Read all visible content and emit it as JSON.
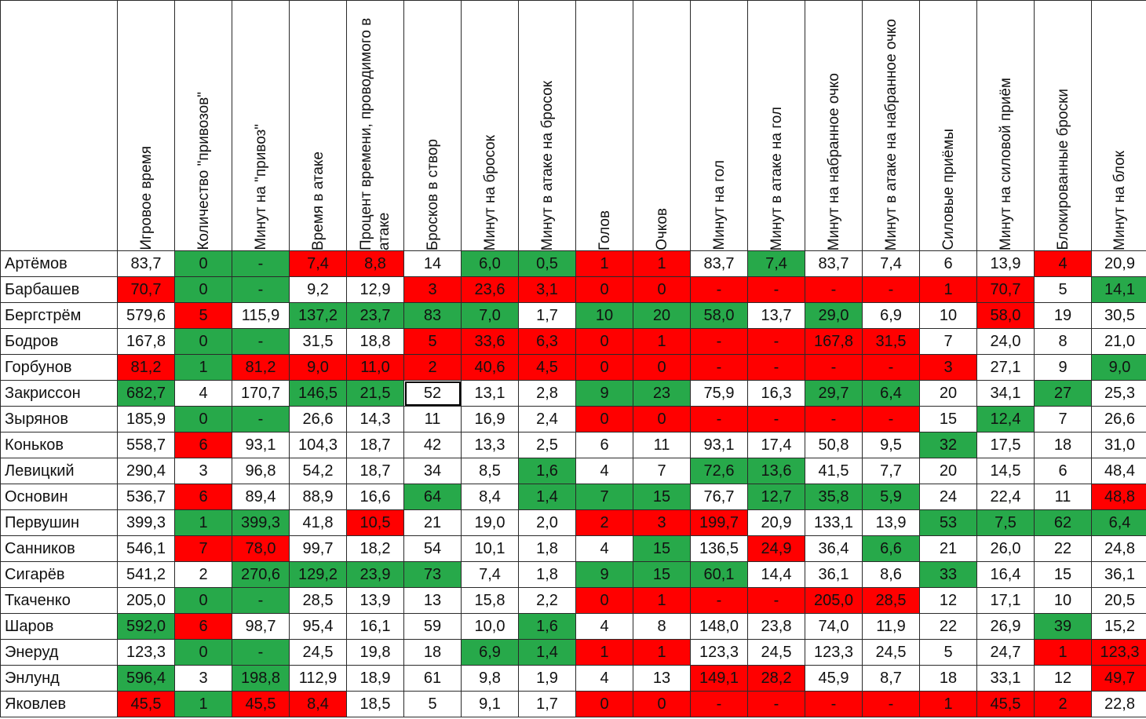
{
  "colors": {
    "green": "#27a94a",
    "red": "#ff0000"
  },
  "headers": [
    "Игровое время",
    "Количество \"привозов\"",
    "Минут на \"привоз\"",
    "Время в атаке",
    "Процент времени, проводимого в атаке",
    "Бросков в створ",
    "Минут на бросок",
    "Минут в атаке на бросок",
    "Голов",
    "Очков",
    "Минут на гол",
    "Минут в атаке на гол",
    "Минут на набранное очко",
    "Минут в атаке на набранное очко",
    "Силовые приёмы",
    "Минут на силовой приём",
    "Блокированные броски",
    "Минут на блок"
  ],
  "rows": [
    {
      "name": "Артёмов",
      "values": [
        "83,7",
        "0",
        "-",
        "7,4",
        "8,8",
        "14",
        "6,0",
        "0,5",
        "1",
        "1",
        "83,7",
        "7,4",
        "83,7",
        "7,4",
        "6",
        "13,9",
        "4",
        "20,9"
      ],
      "colors": [
        "",
        "g",
        "g",
        "r",
        "r",
        "",
        "g",
        "g",
        "r",
        "r",
        "",
        "g",
        "",
        "",
        "",
        "",
        "r",
        ""
      ]
    },
    {
      "name": "Барбашев",
      "values": [
        "70,7",
        "0",
        "-",
        "9,2",
        "12,9",
        "3",
        "23,6",
        "3,1",
        "0",
        "0",
        "-",
        "-",
        "-",
        "-",
        "1",
        "70,7",
        "5",
        "14,1"
      ],
      "colors": [
        "r",
        "g",
        "g",
        "",
        "",
        "r",
        "r",
        "r",
        "r",
        "r",
        "r",
        "r",
        "r",
        "r",
        "r",
        "r",
        "",
        "g"
      ]
    },
    {
      "name": "Бергстрём",
      "values": [
        "579,6",
        "5",
        "115,9",
        "137,2",
        "23,7",
        "83",
        "7,0",
        "1,7",
        "10",
        "20",
        "58,0",
        "13,7",
        "29,0",
        "6,9",
        "10",
        "58,0",
        "19",
        "30,5"
      ],
      "colors": [
        "",
        "r",
        "",
        "g",
        "g",
        "g",
        "g",
        "",
        "g",
        "g",
        "g",
        "",
        "g",
        "",
        "",
        "r",
        "",
        ""
      ]
    },
    {
      "name": "Бодров",
      "values": [
        "167,8",
        "0",
        "-",
        "31,5",
        "18,8",
        "5",
        "33,6",
        "6,3",
        "0",
        "1",
        "-",
        "-",
        "167,8",
        "31,5",
        "7",
        "24,0",
        "8",
        "21,0"
      ],
      "colors": [
        "",
        "g",
        "g",
        "",
        "",
        "r",
        "r",
        "r",
        "r",
        "r",
        "r",
        "r",
        "r",
        "r",
        "",
        "",
        "",
        ""
      ]
    },
    {
      "name": "Горбунов",
      "values": [
        "81,2",
        "1",
        "81,2",
        "9,0",
        "11,0",
        "2",
        "40,6",
        "4,5",
        "0",
        "0",
        "-",
        "-",
        "-",
        "-",
        "3",
        "27,1",
        "9",
        "9,0"
      ],
      "colors": [
        "r",
        "g",
        "r",
        "r",
        "r",
        "r",
        "r",
        "r",
        "r",
        "r",
        "r",
        "r",
        "r",
        "r",
        "r",
        "",
        "",
        "g"
      ]
    },
    {
      "name": "Закриссон",
      "values": [
        "682,7",
        "4",
        "170,7",
        "146,5",
        "21,5",
        "52",
        "13,1",
        "2,8",
        "9",
        "23",
        "75,9",
        "16,3",
        "29,7",
        "6,4",
        "20",
        "34,1",
        "27",
        "25,3"
      ],
      "colors": [
        "g",
        "",
        "",
        "g",
        "g",
        "sel",
        "",
        "",
        "g",
        "g",
        "",
        "",
        "g",
        "g",
        "",
        "",
        "g",
        ""
      ]
    },
    {
      "name": "Зырянов",
      "values": [
        "185,9",
        "0",
        "-",
        "26,6",
        "14,3",
        "11",
        "16,9",
        "2,4",
        "0",
        "0",
        "-",
        "-",
        "-",
        "-",
        "15",
        "12,4",
        "7",
        "26,6"
      ],
      "colors": [
        "",
        "g",
        "g",
        "",
        "",
        "",
        "",
        "",
        "r",
        "r",
        "r",
        "r",
        "r",
        "r",
        "",
        "g",
        "",
        ""
      ]
    },
    {
      "name": "Коньков",
      "values": [
        "558,7",
        "6",
        "93,1",
        "104,3",
        "18,7",
        "42",
        "13,3",
        "2,5",
        "6",
        "11",
        "93,1",
        "17,4",
        "50,8",
        "9,5",
        "32",
        "17,5",
        "18",
        "31,0"
      ],
      "colors": [
        "",
        "r",
        "",
        "",
        "",
        "",
        "",
        "",
        "",
        "",
        "",
        "",
        "",
        "",
        "g",
        "",
        "",
        ""
      ]
    },
    {
      "name": "Левицкий",
      "values": [
        "290,4",
        "3",
        "96,8",
        "54,2",
        "18,7",
        "34",
        "8,5",
        "1,6",
        "4",
        "7",
        "72,6",
        "13,6",
        "41,5",
        "7,7",
        "20",
        "14,5",
        "6",
        "48,4"
      ],
      "colors": [
        "",
        "",
        "",
        "",
        "",
        "",
        "",
        "g",
        "",
        "",
        "g",
        "g",
        "",
        "",
        "",
        "",
        "",
        ""
      ]
    },
    {
      "name": "Основин",
      "values": [
        "536,7",
        "6",
        "89,4",
        "88,9",
        "16,6",
        "64",
        "8,4",
        "1,4",
        "7",
        "15",
        "76,7",
        "12,7",
        "35,8",
        "5,9",
        "24",
        "22,4",
        "11",
        "48,8"
      ],
      "colors": [
        "",
        "r",
        "",
        "",
        "",
        "g",
        "",
        "g",
        "g",
        "g",
        "",
        "g",
        "g",
        "g",
        "",
        "",
        "",
        "r"
      ]
    },
    {
      "name": "Первушин",
      "values": [
        "399,3",
        "1",
        "399,3",
        "41,8",
        "10,5",
        "21",
        "19,0",
        "2,0",
        "2",
        "3",
        "199,7",
        "20,9",
        "133,1",
        "13,9",
        "53",
        "7,5",
        "62",
        "6,4"
      ],
      "colors": [
        "",
        "g",
        "g",
        "",
        "r",
        "",
        "",
        "",
        "r",
        "r",
        "r",
        "",
        "",
        "",
        "g",
        "g",
        "g",
        "g"
      ]
    },
    {
      "name": "Санников",
      "values": [
        "546,1",
        "7",
        "78,0",
        "99,7",
        "18,2",
        "54",
        "10,1",
        "1,8",
        "4",
        "15",
        "136,5",
        "24,9",
        "36,4",
        "6,6",
        "21",
        "26,0",
        "22",
        "24,8"
      ],
      "colors": [
        "",
        "r",
        "r",
        "",
        "",
        "",
        "",
        "",
        "",
        "g",
        "",
        "r",
        "",
        "g",
        "",
        "",
        "",
        ""
      ]
    },
    {
      "name": "Сигарёв",
      "values": [
        "541,2",
        "2",
        "270,6",
        "129,2",
        "23,9",
        "73",
        "7,4",
        "1,8",
        "9",
        "15",
        "60,1",
        "14,4",
        "36,1",
        "8,6",
        "33",
        "16,4",
        "15",
        "36,1"
      ],
      "colors": [
        "",
        "",
        "g",
        "g",
        "g",
        "g",
        "",
        "",
        "g",
        "g",
        "g",
        "",
        "",
        "",
        "g",
        "",
        "",
        ""
      ]
    },
    {
      "name": "Ткаченко",
      "values": [
        "205,0",
        "0",
        "-",
        "28,5",
        "13,9",
        "13",
        "15,8",
        "2,2",
        "0",
        "1",
        "-",
        "-",
        "205,0",
        "28,5",
        "12",
        "17,1",
        "10",
        "20,5"
      ],
      "colors": [
        "",
        "g",
        "g",
        "",
        "",
        "",
        "",
        "",
        "r",
        "r",
        "r",
        "r",
        "r",
        "r",
        "",
        "",
        "",
        ""
      ]
    },
    {
      "name": "Шаров",
      "values": [
        "592,0",
        "6",
        "98,7",
        "95,4",
        "16,1",
        "59",
        "10,0",
        "1,6",
        "4",
        "8",
        "148,0",
        "23,8",
        "74,0",
        "11,9",
        "22",
        "26,9",
        "39",
        "15,2"
      ],
      "colors": [
        "g",
        "r",
        "",
        "",
        "",
        "",
        "",
        "g",
        "",
        "",
        "",
        "",
        "",
        "",
        "",
        "",
        "g",
        ""
      ]
    },
    {
      "name": "Энеруд",
      "values": [
        "123,3",
        "0",
        "-",
        "24,5",
        "19,8",
        "18",
        "6,9",
        "1,4",
        "1",
        "1",
        "123,3",
        "24,5",
        "123,3",
        "24,5",
        "5",
        "24,7",
        "1",
        "123,3"
      ],
      "colors": [
        "",
        "g",
        "g",
        "",
        "",
        "",
        "g",
        "g",
        "r",
        "r",
        "",
        "",
        "",
        "",
        "",
        "",
        "r",
        "r"
      ]
    },
    {
      "name": "Энлунд",
      "values": [
        "596,4",
        "3",
        "198,8",
        "112,9",
        "18,9",
        "61",
        "9,8",
        "1,9",
        "4",
        "13",
        "149,1",
        "28,2",
        "45,9",
        "8,7",
        "18",
        "33,1",
        "12",
        "49,7"
      ],
      "colors": [
        "g",
        "",
        "g",
        "",
        "",
        "",
        "",
        "",
        "",
        "",
        "r",
        "r",
        "",
        "",
        "",
        "",
        "",
        "r"
      ]
    },
    {
      "name": "Яковлев",
      "values": [
        "45,5",
        "1",
        "45,5",
        "8,4",
        "18,5",
        "5",
        "9,1",
        "1,7",
        "0",
        "0",
        "-",
        "-",
        "-",
        "-",
        "1",
        "45,5",
        "2",
        "22,8"
      ],
      "colors": [
        "r",
        "g",
        "r",
        "r",
        "",
        "",
        "",
        "",
        "r",
        "r",
        "r",
        "r",
        "r",
        "r",
        "r",
        "r",
        "r",
        ""
      ]
    }
  ]
}
